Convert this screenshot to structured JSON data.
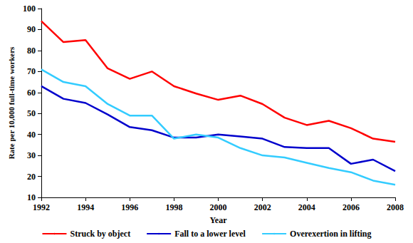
{
  "chart_data": {
    "type": "line",
    "x_label": "Year",
    "y_label": "Rate per 10,000 full-time workers",
    "x": [
      1992,
      1993,
      1994,
      1995,
      1996,
      1997,
      1998,
      1999,
      2000,
      2001,
      2002,
      2003,
      2004,
      2005,
      2006,
      2007,
      2008
    ],
    "series": [
      {
        "name": "Struck by object",
        "color": "#ff0000",
        "values": [
          94,
          84,
          85,
          71.5,
          66.5,
          70,
          63,
          59.5,
          56.5,
          58.5,
          54.5,
          48,
          44.5,
          46.5,
          43,
          38,
          36.5
        ]
      },
      {
        "name": "Fall to a lower level",
        "color": "#0000cc",
        "values": [
          63,
          57,
          55,
          49.5,
          43.5,
          42,
          38.5,
          38.5,
          40,
          39,
          38,
          34,
          33.5,
          33.5,
          26,
          28,
          22.5
        ]
      },
      {
        "name": "Overexertion in lifting",
        "color": "#33ccff",
        "values": [
          71,
          65,
          63,
          54.5,
          49,
          49,
          38,
          40,
          38.5,
          33.5,
          30,
          29,
          26.5,
          24,
          22,
          18,
          16
        ]
      }
    ],
    "xlim": [
      1992,
      2008
    ],
    "xticks": [
      1992,
      1994,
      1996,
      1998,
      2000,
      2002,
      2004,
      2006,
      2008
    ],
    "ylim": [
      10,
      100
    ],
    "yticks": [
      10,
      20,
      30,
      40,
      50,
      60,
      70,
      80,
      90,
      100
    ],
    "grid": false,
    "legend": "bottom"
  }
}
